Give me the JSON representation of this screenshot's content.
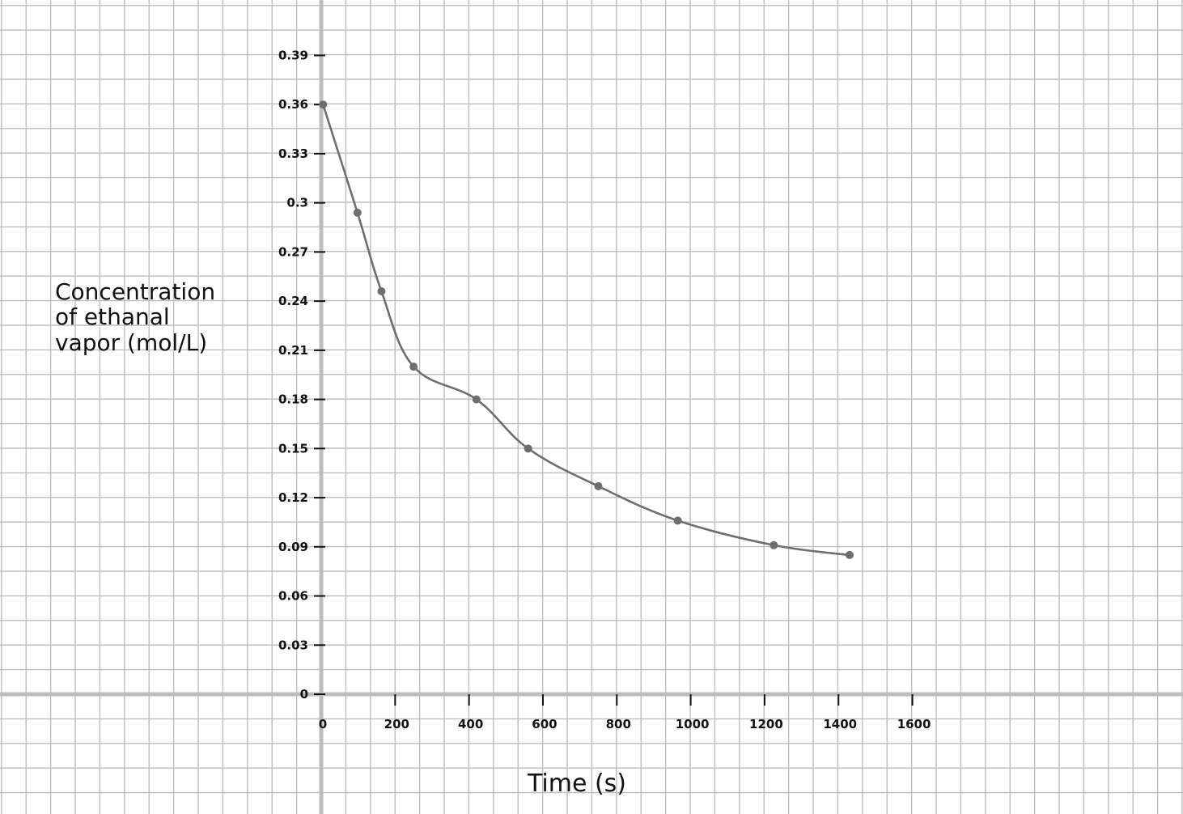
{
  "chart_data": {
    "type": "line",
    "title": "",
    "xlabel": "Time (s)",
    "ylabel_lines": [
      "Concentration",
      "of ethanal",
      "vapor (mol/L)"
    ],
    "xlim": [
      0,
      1600
    ],
    "ylim": [
      0,
      0.39
    ],
    "x_ticks": [
      0,
      200,
      400,
      600,
      800,
      1000,
      1200,
      1400,
      1600
    ],
    "x_tick_labels": [
      "0",
      "200",
      "400",
      "600",
      "800",
      "1000",
      "1200",
      "1400",
      "1600"
    ],
    "y_ticks": [
      0,
      0.03,
      0.06,
      0.09,
      0.12,
      0.15,
      0.18,
      0.21,
      0.24,
      0.27,
      0.3,
      0.33,
      0.36,
      0.39
    ],
    "y_tick_labels": [
      "0",
      "0.03",
      "0.06",
      "0.09",
      "0.12",
      "0.15",
      "0.18",
      "0.21",
      "0.24",
      "0.27",
      "0.3",
      "0.33",
      "0.36",
      "0.39"
    ],
    "grid": true,
    "series": [
      {
        "x": [
          5,
          98,
          163,
          250,
          420,
          560,
          750,
          965,
          1225,
          1430
        ],
        "y": [
          0.36,
          0.294,
          0.246,
          0.2,
          0.18,
          0.15,
          0.127,
          0.106,
          0.091,
          0.085
        ]
      }
    ],
    "colors": {
      "line": "#6e6e6e",
      "grid": "#bdbdbd",
      "axis": "#bdbdbd",
      "ink": "#111111"
    }
  }
}
